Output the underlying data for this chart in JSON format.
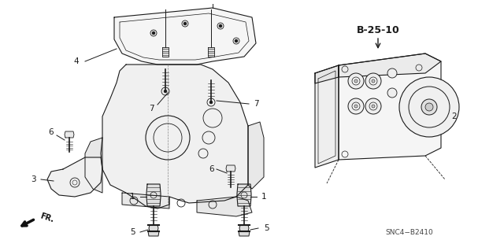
{
  "background_color": "#ffffff",
  "figsize": [
    6.4,
    3.19
  ],
  "dpi": 100,
  "diagram_code": "B-25-10",
  "part_code": "SNC4−B2410",
  "fr_label": "FR.",
  "line_color": "#1a1a1a",
  "text_color": "#1a1a1a",
  "label_fontsize": 7.5,
  "code_fontsize": 9,
  "lw": 0.8
}
